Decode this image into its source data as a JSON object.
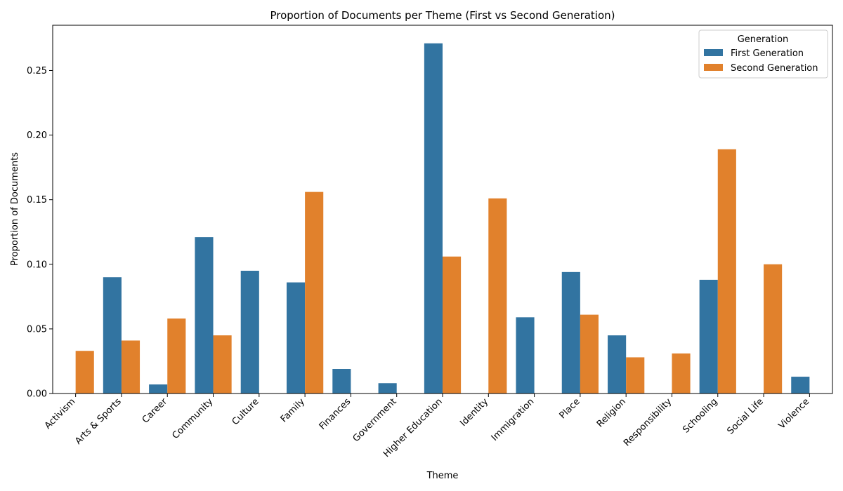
{
  "chart_data": {
    "type": "bar",
    "title": "Proportion of Documents per Theme (First vs Second Generation)",
    "xlabel": "Theme",
    "ylabel": "Proportion of Documents",
    "ylim": [
      0,
      0.285
    ],
    "yticks": [
      "0.00",
      "0.05",
      "0.10",
      "0.15",
      "0.20",
      "0.25"
    ],
    "categories": [
      "Activism",
      "Arts & Sports",
      "Career",
      "Community",
      "Culture",
      "Family",
      "Finances",
      "Government",
      "Higher Education",
      "Identity",
      "Immigration",
      "Place",
      "Religion",
      "Responsibility",
      "Schooling",
      "Social Life",
      "Violence"
    ],
    "series": [
      {
        "name": "First Generation",
        "color": "#3274a1",
        "values": [
          0,
          0.09,
          0.007,
          0.121,
          0.095,
          0.086,
          0.019,
          0.008,
          0.271,
          0,
          0.059,
          0.094,
          0.045,
          0,
          0.088,
          0,
          0.013
        ]
      },
      {
        "name": "Second Generation",
        "color": "#e1812c",
        "values": [
          0.033,
          0.041,
          0.058,
          0.045,
          0,
          0.156,
          0,
          0,
          0.106,
          0.151,
          0,
          0.061,
          0.028,
          0.031,
          0.189,
          0.1,
          0
        ]
      }
    ],
    "legend": {
      "title": "Generation",
      "position": "top-right"
    },
    "grid": false
  }
}
